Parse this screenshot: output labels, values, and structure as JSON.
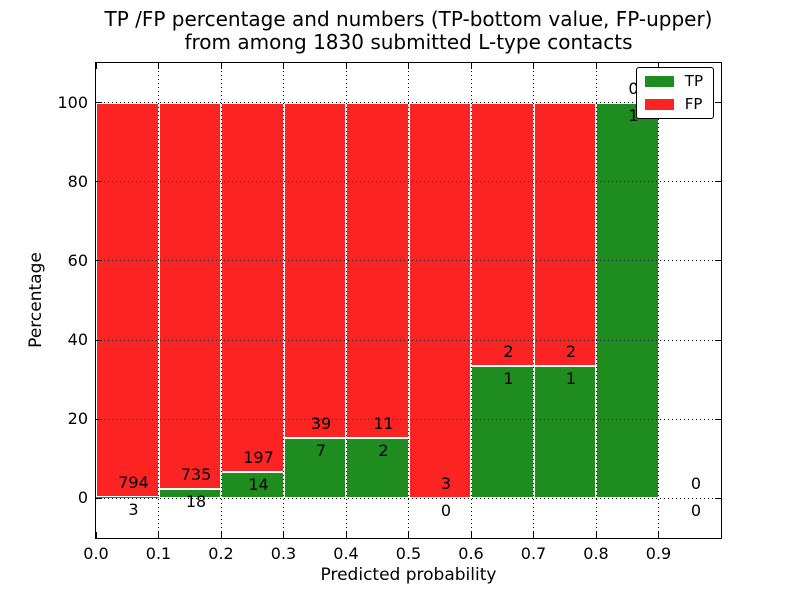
{
  "title": {
    "line1": "TP /FP percentage and numbers (TP-bottom value, FP-upper)",
    "line2": "from among 1830 submitted L-type contacts"
  },
  "chart_data": {
    "type": "bar",
    "stacked": true,
    "normalized": "percent",
    "title": "TP /FP percentage and numbers (TP-bottom value, FP-upper)\nfrom among 1830 submitted L-type contacts",
    "xlabel": "Predicted probability",
    "ylabel": "Percentage",
    "xlim": [
      0.0,
      1.0
    ],
    "ylim": [
      -10,
      110
    ],
    "xtick_values": [
      0.0,
      0.1,
      0.2,
      0.3,
      0.4,
      0.5,
      0.6,
      0.7,
      0.8,
      0.9
    ],
    "xtick_labels": [
      "0.0",
      "0.1",
      "0.2",
      "0.3",
      "0.4",
      "0.5",
      "0.6",
      "0.7",
      "0.8",
      "0.9"
    ],
    "ytick_values": [
      0,
      20,
      40,
      60,
      80,
      100
    ],
    "ytick_labels": [
      "0",
      "20",
      "40",
      "60",
      "80",
      "100"
    ],
    "grid": {
      "on": true,
      "linestyle": "dotted",
      "color": "#000000"
    },
    "bin_width": 0.1,
    "bins": [
      {
        "range": "0.0-0.1",
        "x0": 0.0,
        "x1": 0.1,
        "tp": 3,
        "fp": 794,
        "tp_pct": 0.38
      },
      {
        "range": "0.1-0.2",
        "x0": 0.1,
        "x1": 0.2,
        "tp": 18,
        "fp": 735,
        "tp_pct": 2.39
      },
      {
        "range": "0.2-0.3",
        "x0": 0.2,
        "x1": 0.3,
        "tp": 14,
        "fp": 197,
        "tp_pct": 6.64
      },
      {
        "range": "0.3-0.4",
        "x0": 0.3,
        "x1": 0.4,
        "tp": 7,
        "fp": 39,
        "tp_pct": 15.22
      },
      {
        "range": "0.4-0.5",
        "x0": 0.4,
        "x1": 0.5,
        "tp": 2,
        "fp": 11,
        "tp_pct": 15.38
      },
      {
        "range": "0.5-0.6",
        "x0": 0.5,
        "x1": 0.6,
        "tp": 0,
        "fp": 3,
        "tp_pct": 0
      },
      {
        "range": "0.6-0.7",
        "x0": 0.6,
        "x1": 0.7,
        "tp": 1,
        "fp": 2,
        "tp_pct": 33.33
      },
      {
        "range": "0.7-0.8",
        "x0": 0.7,
        "x1": 0.8,
        "tp": 1,
        "fp": 2,
        "tp_pct": 33.33
      },
      {
        "range": "0.8-0.9",
        "x0": 0.8,
        "x1": 0.9,
        "tp": 1,
        "fp": 0,
        "tp_pct": 100
      },
      {
        "range": "0.9-1.0",
        "x0": 0.9,
        "x1": 1.0,
        "tp": 0,
        "fp": 0,
        "tp_pct": null
      }
    ],
    "series": [
      {
        "name": "TP",
        "color": "#1f8c1f",
        "counts": [
          3,
          18,
          14,
          7,
          2,
          0,
          1,
          1,
          1,
          0
        ]
      },
      {
        "name": "FP",
        "color": "#fc2323",
        "counts": [
          794,
          735,
          197,
          39,
          11,
          3,
          2,
          2,
          0,
          0
        ]
      }
    ],
    "legend": {
      "position": "upper right",
      "entries": [
        "TP",
        "FP"
      ]
    }
  }
}
